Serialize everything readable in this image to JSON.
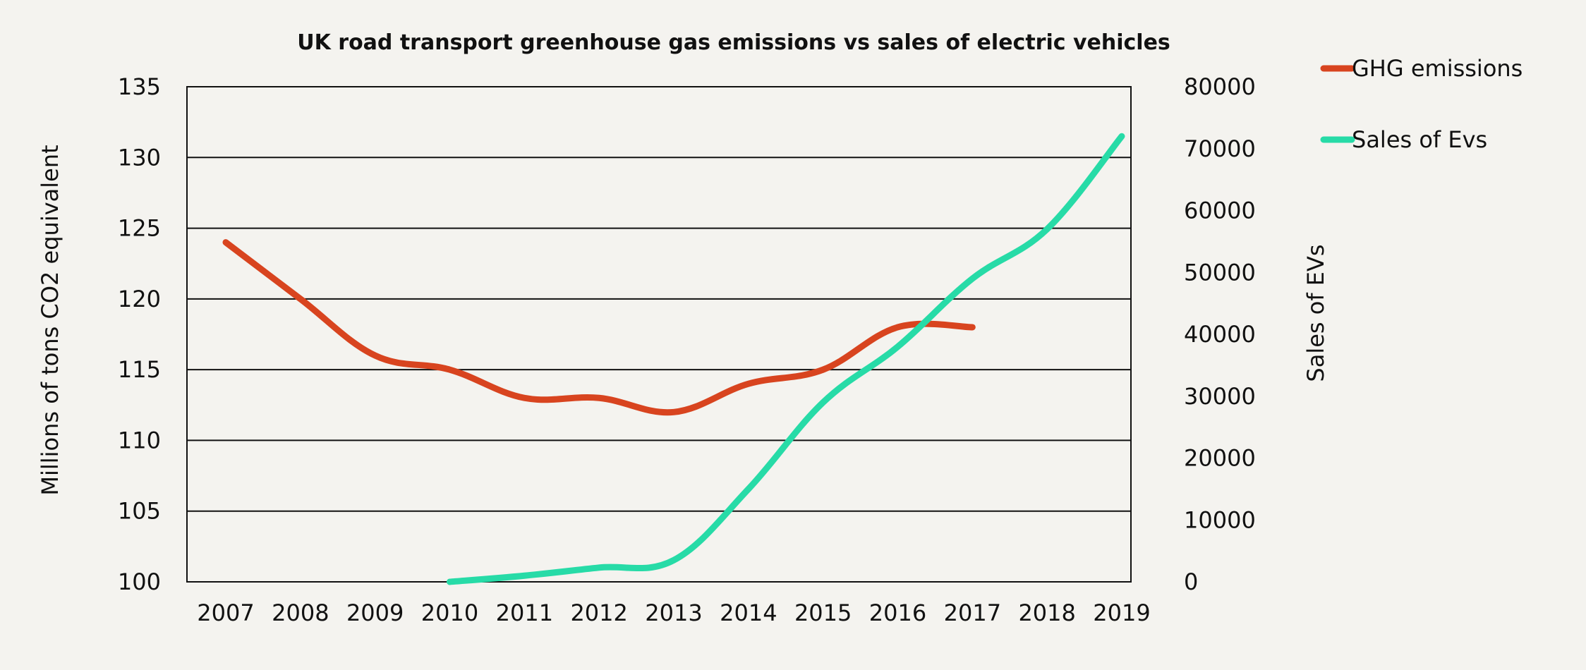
{
  "chart_data": {
    "type": "line",
    "title": "UK road transport greenhouse gas emissions vs sales of electric vehicles",
    "categories": [
      "2007",
      "2008",
      "2009",
      "2010",
      "2011",
      "2012",
      "2013",
      "2014",
      "2015",
      "2016",
      "2017",
      "2018",
      "2019"
    ],
    "y_left": {
      "label": "Millions of tons CO2 equivalent",
      "min": 100,
      "max": 135,
      "ticks": [
        100,
        105,
        110,
        115,
        120,
        125,
        130,
        135
      ]
    },
    "y_right": {
      "label": "Sales of EVs",
      "min": 0,
      "max": 80000,
      "ticks": [
        0,
        10000,
        20000,
        30000,
        40000,
        50000,
        60000,
        70000,
        80000
      ]
    },
    "gridlines": true,
    "legend_position": "top-right",
    "series": [
      {
        "name": "GHG emissions",
        "axis": "left",
        "color": "#d8441f",
        "values": [
          124,
          120,
          116,
          115,
          113,
          113,
          112,
          114,
          115,
          118,
          118,
          null,
          null
        ]
      },
      {
        "name": "Sales of Evs",
        "axis": "right",
        "color": "#27dba7",
        "values": [
          null,
          null,
          null,
          0,
          1000,
          2300,
          3500,
          15000,
          29000,
          38000,
          49000,
          57000,
          72000
        ]
      }
    ]
  }
}
